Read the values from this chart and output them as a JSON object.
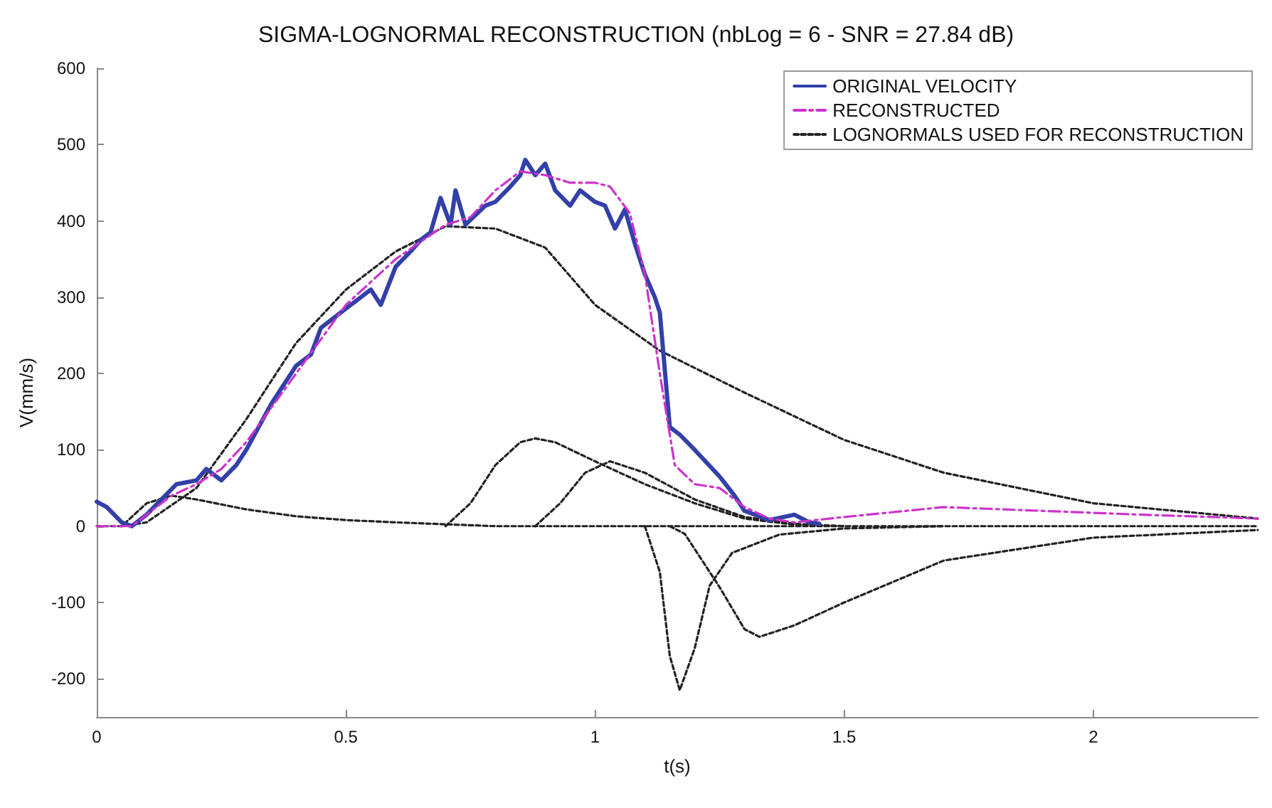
{
  "chart_data": {
    "type": "line",
    "title": "SIGMA-LOGNORMAL RECONSTRUCTION (nbLog = 6 - SNR = 27.84 dB)",
    "xlabel": "t(s)",
    "ylabel": "V(mm/s)",
    "xlim": [
      0,
      2.33
    ],
    "xticks": [
      0,
      0.5,
      1,
      1.5,
      2
    ],
    "ylim": [
      -250,
      600
    ],
    "yticks": [
      -200,
      -100,
      0,
      100,
      200,
      300,
      400,
      500,
      600
    ],
    "grid": false,
    "legend": "top right",
    "marker": "none",
    "series": [
      {
        "name": "ORIGINAL VELOCITY",
        "color": "#3340a8",
        "line_style": "solid",
        "x": [
          0,
          0.02,
          0.05,
          0.07,
          0.1,
          0.13,
          0.16,
          0.2,
          0.22,
          0.25,
          0.28,
          0.3,
          0.35,
          0.4,
          0.43,
          0.45,
          0.5,
          0.55,
          0.57,
          0.6,
          0.63,
          0.65,
          0.67,
          0.69,
          0.71,
          0.72,
          0.74,
          0.78,
          0.8,
          0.83,
          0.85,
          0.86,
          0.88,
          0.9,
          0.92,
          0.95,
          0.97,
          1.0,
          1.02,
          1.04,
          1.06,
          1.08,
          1.1,
          1.12,
          1.13,
          1.15,
          1.17,
          1.2,
          1.25,
          1.28,
          1.3,
          1.35,
          1.4,
          1.43,
          1.45
        ],
        "values": [
          32,
          25,
          5,
          0,
          15,
          35,
          55,
          60,
          75,
          60,
          80,
          100,
          160,
          210,
          225,
          260,
          285,
          310,
          290,
          340,
          360,
          375,
          385,
          430,
          395,
          440,
          395,
          420,
          425,
          445,
          460,
          480,
          460,
          475,
          440,
          420,
          440,
          425,
          420,
          390,
          415,
          370,
          330,
          300,
          280,
          130,
          120,
          100,
          65,
          40,
          20,
          8,
          15,
          5,
          3
        ]
      },
      {
        "name": "RECONSTRUCTED",
        "color": "#cc33cc",
        "line_style": "dashed",
        "x": [
          0,
          0.07,
          0.1,
          0.15,
          0.2,
          0.25,
          0.3,
          0.4,
          0.5,
          0.6,
          0.7,
          0.75,
          0.8,
          0.85,
          0.9,
          0.95,
          1.0,
          1.03,
          1.07,
          1.1,
          1.13,
          1.16,
          1.2,
          1.25,
          1.3,
          1.35,
          1.4,
          1.5,
          1.7,
          1.9,
          2.1,
          2.33
        ],
        "values": [
          0,
          0,
          15,
          40,
          55,
          75,
          110,
          200,
          290,
          350,
          395,
          405,
          440,
          465,
          460,
          450,
          450,
          445,
          410,
          330,
          200,
          80,
          55,
          50,
          25,
          10,
          5,
          12,
          25,
          20,
          15,
          10
        ]
      },
      {
        "name": "LOGNORMALS USED FOR RECONSTRUCTION",
        "color": "#222222",
        "line_style": "dotted",
        "x": [
          0.05,
          0.1,
          0.2,
          0.3,
          0.4,
          0.5,
          0.6,
          0.7,
          0.8,
          0.9,
          1.0,
          1.13,
          1.3,
          1.5,
          1.7,
          2.0,
          2.33
        ],
        "values": [
          0,
          5,
          50,
          140,
          240,
          310,
          360,
          393,
          390,
          365,
          290,
          230,
          175,
          113,
          70,
          30,
          10
        ]
      },
      {
        "color": "#222222",
        "line_style": "dotted",
        "x": [
          0,
          0.05,
          0.1,
          0.15,
          0.2,
          0.3,
          0.4,
          0.5,
          0.6,
          0.8,
          2.33
        ],
        "values": [
          0,
          0,
          30,
          40,
          35,
          22,
          13,
          8,
          5,
          0,
          0
        ]
      },
      {
        "color": "#222222",
        "line_style": "dotted",
        "x": [
          0.7,
          0.75,
          0.8,
          0.85,
          0.88,
          0.92,
          1.0,
          1.1,
          1.2,
          1.3,
          1.4,
          1.5
        ],
        "values": [
          0,
          30,
          80,
          110,
          115,
          110,
          85,
          55,
          30,
          10,
          2,
          0
        ]
      },
      {
        "color": "#222222",
        "line_style": "dotted",
        "x": [
          0.88,
          0.93,
          0.98,
          1.03,
          1.1,
          1.2,
          1.3,
          1.4,
          1.5
        ],
        "values": [
          0,
          30,
          70,
          85,
          70,
          35,
          12,
          3,
          0
        ]
      },
      {
        "color": "#222222",
        "line_style": "dotted",
        "x": [
          1.1,
          1.13,
          1.15,
          1.17,
          1.2,
          1.23,
          1.275,
          1.37,
          1.5,
          1.7
        ],
        "values": [
          0,
          -60,
          -170,
          -215,
          -160,
          -78,
          -35,
          -11,
          -3,
          0
        ]
      },
      {
        "color": "#222222",
        "line_style": "dotted",
        "x": [
          1.15,
          1.18,
          1.22,
          1.25,
          1.3,
          1.33,
          1.4,
          1.5,
          1.7,
          2.0,
          2.33
        ],
        "values": [
          0,
          -10,
          -50,
          -80,
          -135,
          -145,
          -130,
          -100,
          -45,
          -15,
          -5
        ]
      }
    ]
  }
}
